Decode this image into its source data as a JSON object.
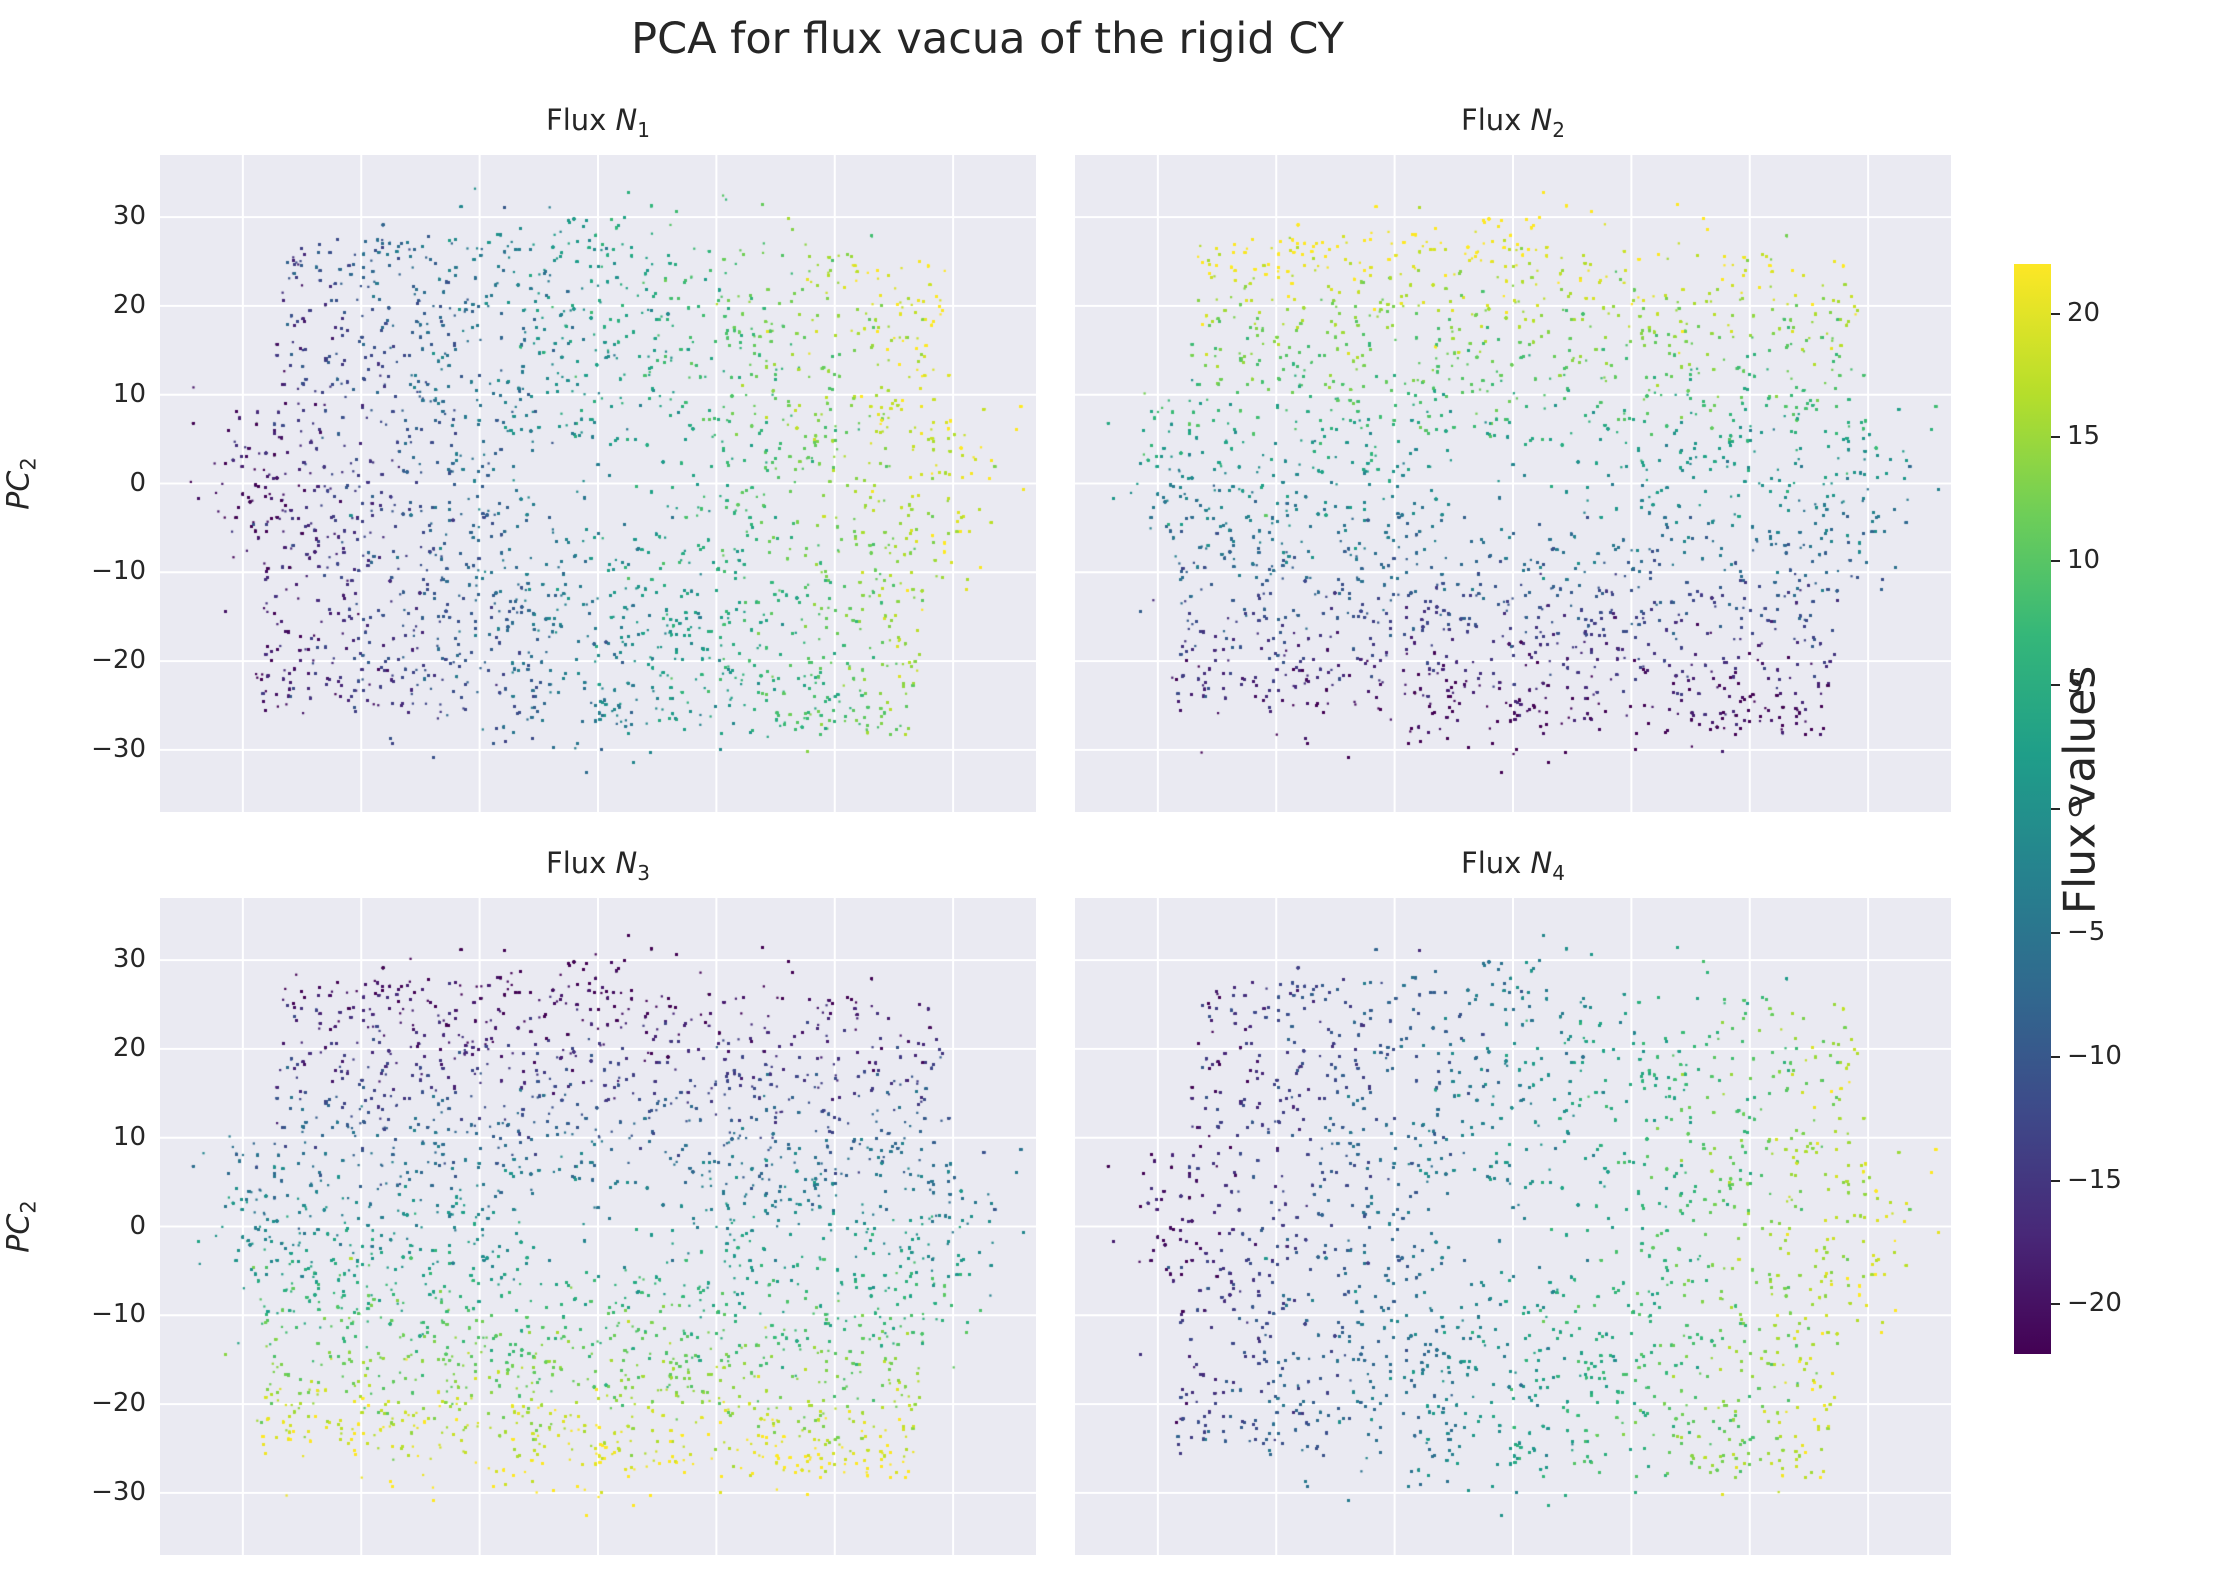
{
  "title": "PCA for flux vacua of the rigid CY",
  "colorbar": {
    "label": "Flux values",
    "range": [
      -22,
      22
    ],
    "ticks": [
      20,
      15,
      10,
      5,
      0,
      -5,
      -10,
      -15,
      -20
    ],
    "colormap": "viridis"
  },
  "chart_data": [
    {
      "type": "scatter",
      "title": "Flux N1",
      "title_main": "Flux ",
      "title_sub": "N",
      "title_index": "1",
      "ylabel": "PC",
      "ylabel_sub": "2",
      "ylim": [
        -37,
        37
      ],
      "yticks": [
        30,
        20,
        10,
        0,
        -10,
        -20,
        -30
      ],
      "xlim": [
        -37,
        37
      ],
      "gradient": "x-increasing",
      "value_range": [
        -22,
        22
      ]
    },
    {
      "type": "scatter",
      "title": "Flux N2",
      "title_main": "Flux ",
      "title_sub": "N",
      "title_index": "2",
      "ylabel": "",
      "ylabel_sub": "",
      "ylim": [
        -37,
        37
      ],
      "yticks": [],
      "xlim": [
        -37,
        37
      ],
      "gradient": "y-increasing",
      "value_range": [
        -22,
        22
      ]
    },
    {
      "type": "scatter",
      "title": "Flux N3",
      "title_main": "Flux ",
      "title_sub": "N",
      "title_index": "3",
      "ylabel": "PC",
      "ylabel_sub": "2",
      "ylim": [
        -37,
        37
      ],
      "yticks": [
        30,
        20,
        10,
        0,
        -10,
        -20,
        -30
      ],
      "xlim": [
        -37,
        37
      ],
      "gradient": "y-decreasing",
      "value_range": [
        -22,
        22
      ]
    },
    {
      "type": "scatter",
      "title": "Flux N4",
      "title_main": "Flux ",
      "title_sub": "N",
      "title_index": "4",
      "ylabel": "",
      "ylabel_sub": "",
      "ylim": [
        -37,
        37
      ],
      "yticks": [],
      "xlim": [
        -37,
        37
      ],
      "gradient": "x-increasing-soft",
      "value_range": [
        -22,
        22
      ]
    }
  ]
}
